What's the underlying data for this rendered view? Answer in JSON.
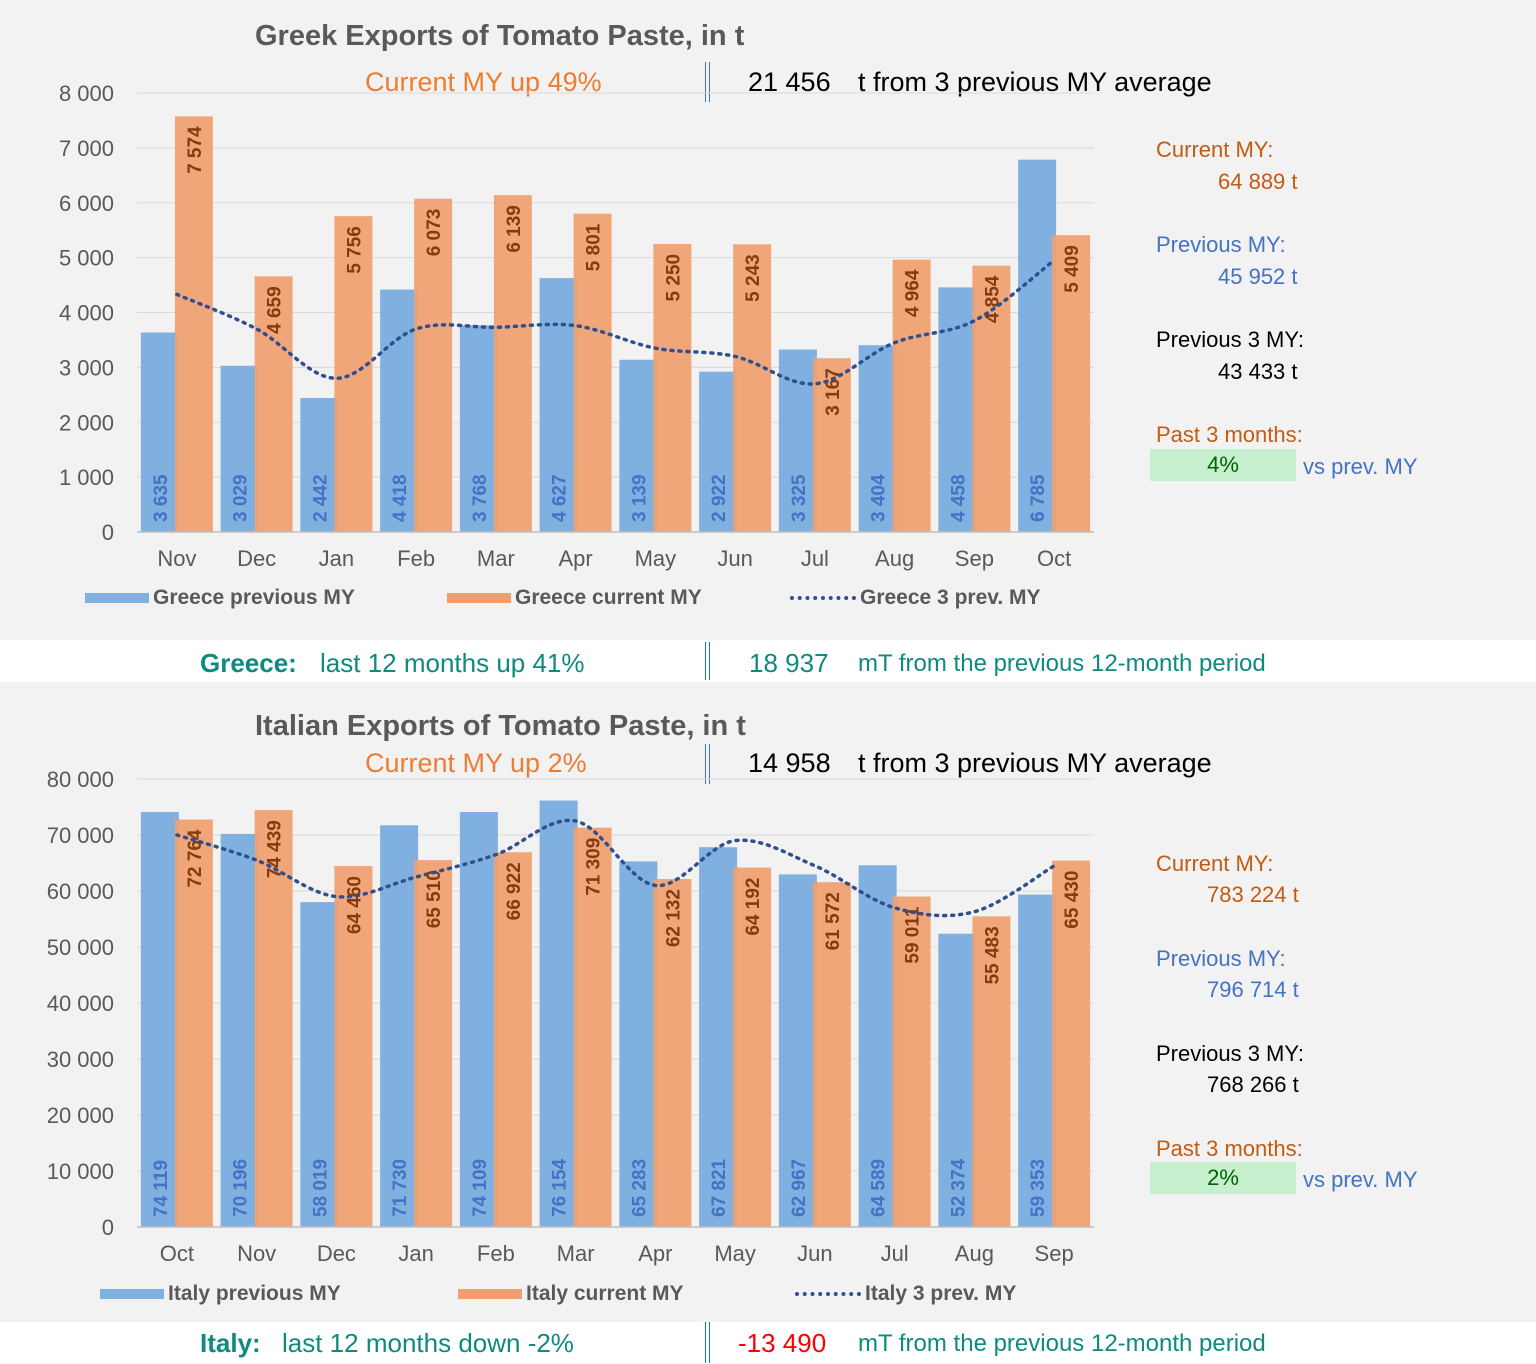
{
  "colors": {
    "previous": "#7fb0e0",
    "current": "#f0a070",
    "avg_line": "#2f4f8f",
    "grid": "#d9d9d9",
    "prev_label": "#4472c4",
    "curr_label": "#843c0c"
  },
  "greece": {
    "title": "Greek Exports of Tomato Paste, in t",
    "current_my_up": "Current MY up  49%",
    "avg_value": "21 456",
    "avg_suffix": "t from 3 previous MY average",
    "current_my_label": "Current MY:",
    "current_my_value": "64 889  t",
    "previous_my_label": "Previous MY:",
    "previous_my_value": "45 952  t",
    "previous3_label": "Previous 3 MY:",
    "previous3_value": "43 433  t",
    "past3_label": "Past 3 months:",
    "past3_badge": "4%",
    "past3_suffix": "vs prev. MY",
    "summary_country": "Greece:",
    "summary_text": "last 12 months up  41%",
    "summary_value": "18 937",
    "summary_suffix": "mT from the previous 12-month period",
    "legend": [
      "Greece previous MY",
      "Greece current MY",
      "Greece 3 prev. MY"
    ]
  },
  "italy": {
    "title": "Italian Exports of Tomato Paste, in t",
    "current_my_up": "Current MY up  2%",
    "avg_value": "14 958",
    "avg_suffix": "t from 3 previous MY average",
    "current_my_label": "Current MY:",
    "current_my_value": "783 224  t",
    "previous_my_label": "Previous MY:",
    "previous_my_value": "796 714  t",
    "previous3_label": "Previous 3 MY:",
    "previous3_value": "768 266  t",
    "past3_label": "Past 3 months:",
    "past3_badge": "2%",
    "past3_suffix": "vs prev. MY",
    "summary_country": "Italy:",
    "summary_text": "last 12 months down  -2%",
    "summary_value": "-13 490",
    "summary_suffix": "mT from the previous 12-month period",
    "legend": [
      "Italy previous MY",
      "Italy current MY",
      "Italy 3 prev. MY"
    ]
  },
  "chart_data": [
    {
      "type": "bar",
      "title": "Greek Exports of Tomato Paste, in t",
      "categories": [
        "Nov",
        "Dec",
        "Jan",
        "Feb",
        "Mar",
        "Apr",
        "May",
        "Jun",
        "Jul",
        "Aug",
        "Sep",
        "Oct"
      ],
      "ylim": [
        0,
        8000
      ],
      "yticks": [
        "0",
        "1 000",
        "2 000",
        "3 000",
        "4 000",
        "5 000",
        "6 000",
        "7 000",
        "8 000"
      ],
      "grid": true,
      "legend_position": "bottom",
      "series": [
        {
          "name": "Greece previous MY",
          "type": "bar",
          "values": [
            3635,
            3029,
            2442,
            4418,
            3768,
            4627,
            3139,
            2922,
            3325,
            3404,
            4458,
            6785
          ],
          "labels": [
            "3 635",
            "3 029",
            "2 442",
            "4 418",
            "3 768",
            "4 627",
            "3 139",
            "2 922",
            "3 325",
            "3 404",
            "4 458",
            "6 785"
          ]
        },
        {
          "name": "Greece current MY",
          "type": "bar",
          "values": [
            7574,
            4659,
            5756,
            6073,
            6139,
            5801,
            5250,
            5243,
            3167,
            4964,
            4854,
            5409
          ],
          "labels": [
            "7 574",
            "4 659",
            "5 756",
            "6 073",
            "6 139",
            "5 801",
            "5 250",
            "5 243",
            "3 167",
            "4 964",
            "4 854",
            "5 409"
          ]
        },
        {
          "name": "Greece 3 prev. MY",
          "type": "line",
          "values": [
            4330,
            3700,
            2800,
            3700,
            3730,
            3760,
            3350,
            3200,
            2700,
            3450,
            3850,
            4950
          ]
        }
      ]
    },
    {
      "type": "bar",
      "title": "Italian Exports of Tomato Paste, in t",
      "categories": [
        "Oct",
        "Nov",
        "Dec",
        "Jan",
        "Feb",
        "Mar",
        "Apr",
        "May",
        "Jun",
        "Jul",
        "Aug",
        "Sep"
      ],
      "ylim": [
        0,
        80000
      ],
      "yticks": [
        "0",
        "10 000",
        "20 000",
        "30 000",
        "40 000",
        "50 000",
        "60 000",
        "70 000",
        "80 000"
      ],
      "grid": true,
      "legend_position": "bottom",
      "series": [
        {
          "name": "Italy previous MY",
          "type": "bar",
          "values": [
            74119,
            70196,
            58019,
            71730,
            74109,
            76154,
            65283,
            67821,
            62967,
            64589,
            52374,
            59353
          ],
          "labels": [
            "74 119",
            "70 196",
            "58 019",
            "71 730",
            "74 109",
            "76 154",
            "65 283",
            "67 821",
            "62 967",
            "64 589",
            "52 374",
            "59 353"
          ]
        },
        {
          "name": "Italy current MY",
          "type": "bar",
          "values": [
            72764,
            74439,
            64460,
            65510,
            66922,
            71309,
            62132,
            64192,
            61572,
            59011,
            55483,
            65430
          ],
          "labels": [
            "72 764",
            "74 439",
            "64 460",
            "65 510",
            "66 922",
            "71 309",
            "62 132",
            "64 192",
            "61 572",
            "59 011",
            "55 483",
            "65 430"
          ]
        },
        {
          "name": "Italy 3 prev. MY",
          "type": "line",
          "values": [
            70000,
            65500,
            59000,
            62500,
            66500,
            72500,
            61000,
            69000,
            64500,
            57000,
            56300,
            64500
          ]
        }
      ]
    }
  ]
}
